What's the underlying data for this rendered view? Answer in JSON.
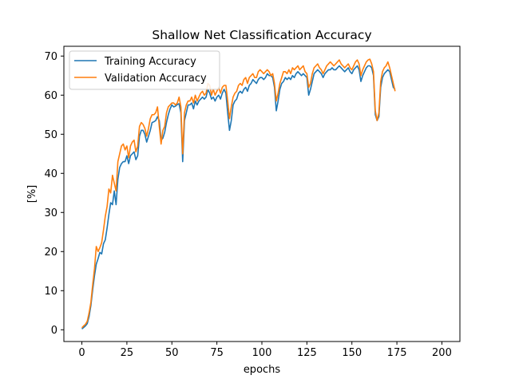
{
  "chart_data": {
    "type": "line",
    "title": "Shallow Net Classification Accuracy",
    "xlabel": "epochs",
    "ylabel": "[%]",
    "xlim": [
      -10,
      210
    ],
    "ylim": [
      -3,
      72.5
    ],
    "xticks": [
      0,
      25,
      50,
      75,
      100,
      125,
      150,
      175,
      200
    ],
    "yticks": [
      0,
      10,
      20,
      30,
      40,
      50,
      60,
      70
    ],
    "grid": false,
    "legend_position": "upper-left",
    "series": [
      {
        "name": "Training Accuracy",
        "color": "#1f77b4",
        "values": [
          0.2,
          0.6,
          1.0,
          1.6,
          3.4,
          6.2,
          10.2,
          13.8,
          16.8,
          18.2,
          19.8,
          19.4,
          22.0,
          23.0,
          26.0,
          29.5,
          32.5,
          32.0,
          35.5,
          32.0,
          38.5,
          41.5,
          42.5,
          43.0,
          43.0,
          44.5,
          42.5,
          44.5,
          45.0,
          45.5,
          43.5,
          44.5,
          49.5,
          51.0,
          51.0,
          50.0,
          48.0,
          49.5,
          51.0,
          53.0,
          53.2,
          53.5,
          54.5,
          53.5,
          48.5,
          49.0,
          50.5,
          53.0,
          55.0,
          56.5,
          57.5,
          57.0,
          57.2,
          57.6,
          57.8,
          55.5,
          43.0,
          53.5,
          55.5,
          57.5,
          57.5,
          58.0,
          56.5,
          58.5,
          57.5,
          58.5,
          59.0,
          59.5,
          59.0,
          59.5,
          61.5,
          60.5,
          59.0,
          59.5,
          58.5,
          59.5,
          60.0,
          59.0,
          60.5,
          61.5,
          60.5,
          55.5,
          51.0,
          53.5,
          57.5,
          58.5,
          59.0,
          60.5,
          61.0,
          60.5,
          61.5,
          62.0,
          61.0,
          62.5,
          63.0,
          64.0,
          63.5,
          63.0,
          64.0,
          64.5,
          64.5,
          64.0,
          64.5,
          65.5,
          65.0,
          65.0,
          64.5,
          62.0,
          56.0,
          58.5,
          61.5,
          63.0,
          63.5,
          64.5,
          64.0,
          64.5,
          64.0,
          65.0,
          64.5,
          65.5,
          66.0,
          65.5,
          65.0,
          65.5,
          65.0,
          64.5,
          60.0,
          61.5,
          63.5,
          65.5,
          66.0,
          66.5,
          66.0,
          65.5,
          64.5,
          65.5,
          66.0,
          66.5,
          66.5,
          67.0,
          66.5,
          66.5,
          67.0,
          67.5,
          67.0,
          66.5,
          66.0,
          66.5,
          67.0,
          66.0,
          65.5,
          66.5,
          67.0,
          67.5,
          66.5,
          63.5,
          65.0,
          66.0,
          67.0,
          67.5,
          67.5,
          67.0,
          65.0,
          55.0,
          53.5,
          54.5,
          62.0,
          64.5,
          65.5,
          66.0,
          66.5,
          66.0,
          64.0,
          62.0,
          61.5
        ],
        "x_start": 0
      },
      {
        "name": "Validation Accuracy",
        "color": "#ff7f0e",
        "values": [
          0.5,
          1.0,
          1.4,
          2.2,
          4.3,
          7.0,
          11.5,
          15.6,
          21.3,
          20.0,
          21.0,
          22.3,
          25.5,
          29.0,
          31.5,
          36.0,
          35.0,
          39.5,
          37.5,
          35.5,
          43.0,
          45.0,
          47.0,
          47.5,
          46.0,
          47.0,
          44.0,
          47.0,
          48.0,
          48.5,
          45.5,
          47.0,
          52.0,
          53.0,
          52.5,
          51.5,
          49.5,
          51.5,
          54.0,
          55.0,
          55.0,
          55.5,
          57.0,
          52.0,
          47.5,
          51.0,
          52.0,
          55.5,
          57.0,
          57.5,
          58.0,
          58.0,
          57.5,
          58.0,
          59.5,
          57.0,
          45.0,
          55.5,
          57.5,
          58.5,
          58.5,
          59.5,
          58.0,
          60.0,
          58.5,
          59.5,
          60.5,
          61.0,
          60.0,
          60.5,
          63.0,
          62.5,
          60.0,
          61.5,
          60.0,
          61.0,
          62.0,
          60.5,
          62.0,
          62.5,
          62.5,
          58.5,
          54.0,
          57.0,
          59.5,
          60.5,
          61.0,
          62.5,
          63.0,
          62.5,
          64.0,
          64.5,
          63.0,
          64.5,
          65.0,
          65.5,
          64.5,
          64.5,
          66.0,
          66.5,
          66.0,
          65.5,
          66.0,
          66.5,
          66.0,
          65.0,
          65.5,
          63.0,
          58.5,
          60.5,
          63.0,
          64.5,
          66.0,
          66.0,
          65.5,
          66.5,
          65.5,
          67.0,
          66.5,
          67.0,
          67.5,
          66.5,
          67.0,
          67.5,
          66.0,
          65.5,
          62.0,
          63.0,
          65.5,
          67.0,
          67.5,
          68.0,
          67.0,
          66.5,
          65.5,
          66.5,
          67.5,
          68.0,
          68.5,
          68.0,
          67.5,
          68.0,
          68.5,
          69.0,
          68.0,
          67.5,
          67.0,
          67.5,
          68.0,
          67.0,
          66.5,
          67.5,
          68.5,
          69.0,
          68.0,
          65.0,
          66.5,
          67.5,
          68.5,
          69.0,
          69.2,
          68.0,
          66.0,
          56.0,
          53.5,
          55.5,
          63.5,
          66.0,
          67.0,
          67.5,
          68.5,
          67.0,
          65.0,
          63.0,
          61.0
        ],
        "x_start": 0
      }
    ]
  }
}
